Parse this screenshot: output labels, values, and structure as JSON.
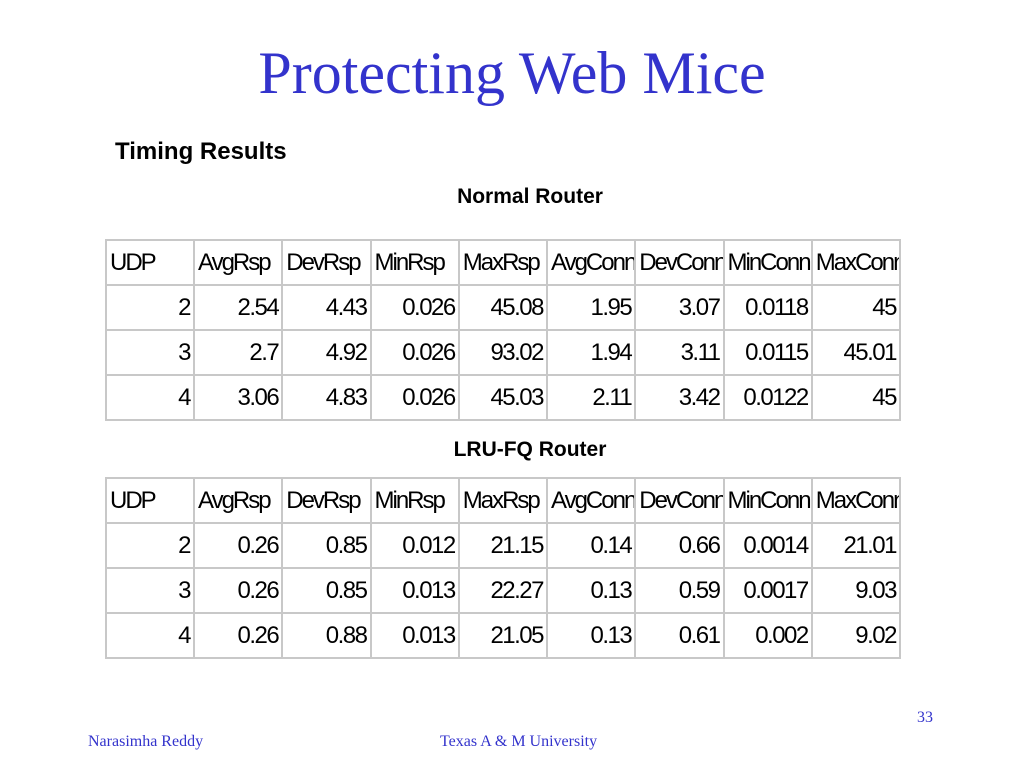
{
  "slide": {
    "title": "Protecting Web Mice",
    "subtitle": "Timing Results"
  },
  "tables": [
    {
      "caption": "Normal Router",
      "headers": [
        "UDP",
        "AvgRsp",
        "DevRsp",
        "MinRsp",
        "MaxRsp",
        "AvgConn",
        "DevConn",
        "MinConn",
        "MaxConn"
      ],
      "rows": [
        [
          "2",
          "2.54",
          "4.43",
          "0.026",
          "45.08",
          "1.95",
          "3.07",
          "0.0118",
          "45"
        ],
        [
          "3",
          "2.7",
          "4.92",
          "0.026",
          "93.02",
          "1.94",
          "3.11",
          "0.0115",
          "45.01"
        ],
        [
          "4",
          "3.06",
          "4.83",
          "0.026",
          "45.03",
          "2.11",
          "3.42",
          "0.0122",
          "45"
        ]
      ]
    },
    {
      "caption": "LRU-FQ Router",
      "headers": [
        "UDP",
        "AvgRsp",
        "DevRsp",
        "MinRsp",
        "MaxRsp",
        "AvgConn",
        "DevConn",
        "MinConn",
        "MaxConn"
      ],
      "rows": [
        [
          "2",
          "0.26",
          "0.85",
          "0.012",
          "21.15",
          "0.14",
          "0.66",
          "0.0014",
          "21.01"
        ],
        [
          "3",
          "0.26",
          "0.85",
          "0.013",
          "22.27",
          "0.13",
          "0.59",
          "0.0017",
          "9.03"
        ],
        [
          "4",
          "0.26",
          "0.88",
          "0.013",
          "21.05",
          "0.13",
          "0.61",
          "0.002",
          "9.02"
        ]
      ]
    }
  ],
  "footer": {
    "author": "Narasimha Reddy",
    "institution": "Texas A & M University",
    "page_number": "33"
  },
  "colors": {
    "title": "#3333cc",
    "footer": "#3333cc",
    "grid": "#c8c8c8"
  }
}
